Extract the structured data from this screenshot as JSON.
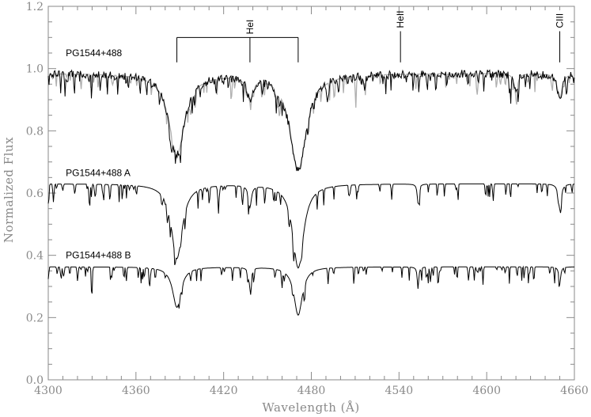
{
  "chart_data": {
    "type": "line",
    "xlabel": "Wavelength (Å)",
    "ylabel": "Normalized Flux",
    "xlim": [
      4300,
      4660
    ],
    "ylim": [
      0.0,
      1.2
    ],
    "xticks": [
      4300,
      4360,
      4420,
      4480,
      4540,
      4600,
      4660
    ],
    "yticks": [
      0.0,
      0.2,
      0.4,
      0.6,
      0.8,
      1.0,
      1.2
    ],
    "xtick_labels": [
      "4300",
      "4360",
      "4420",
      "4480",
      "4540",
      "4600",
      "4660"
    ],
    "ytick_labels": [
      "0.0",
      "0.2",
      "0.4",
      "0.6",
      "0.8",
      "1.0",
      "1.2"
    ],
    "spectra": [
      {
        "label": "PG1544+488",
        "continuum": 0.985,
        "label_x": 4312,
        "label_y": 1.04,
        "color": "#000000",
        "model_color": "#b0b0b0",
        "noisy": true,
        "lines": [
          [
            4388,
            0.26,
            6.5
          ],
          [
            4471,
            0.31,
            6.8
          ],
          [
            4438,
            0.07,
            2.5
          ],
          [
            4620,
            0.06,
            1.5
          ],
          [
            4650,
            0.08,
            2.0
          ],
          [
            4516,
            0.03,
            1.0
          ]
        ]
      },
      {
        "label": "PG1544+488 A",
        "continuum": 0.63,
        "label_x": 4312,
        "label_y": 0.655,
        "color": "#000000",
        "lines": [
          [
            4388,
            0.24,
            4.5
          ],
          [
            4471,
            0.27,
            4.5
          ],
          [
            4438,
            0.07,
            1.2
          ],
          [
            4553,
            0.06,
            0.7
          ],
          [
            4650,
            0.08,
            1.2
          ]
        ]
      },
      {
        "label": "PG1544+488 B",
        "continuum": 0.363,
        "label_x": 4312,
        "label_y": 0.39,
        "color": "#000000",
        "lines": [
          [
            4388,
            0.13,
            3.5
          ],
          [
            4471,
            0.155,
            3.5
          ],
          [
            4438,
            0.06,
            1.0
          ],
          [
            4553,
            0.07,
            0.6
          ],
          [
            4650,
            0.05,
            0.8
          ]
        ]
      }
    ],
    "line_markers": [
      {
        "label": "HeI",
        "x_points": [
          4388,
          4438,
          4471
        ],
        "bracket_y": 1.1,
        "tick_bottom": 1.02,
        "text_x": 4438
      },
      {
        "label": "HeII",
        "x_points": [
          4541
        ],
        "bracket_y": 1.12,
        "tick_bottom": 1.02,
        "text_x": 4541
      },
      {
        "label": "CIII",
        "x_points": [
          4650
        ],
        "bracket_y": 1.12,
        "tick_bottom": 1.02,
        "text_x": 4650
      }
    ]
  }
}
